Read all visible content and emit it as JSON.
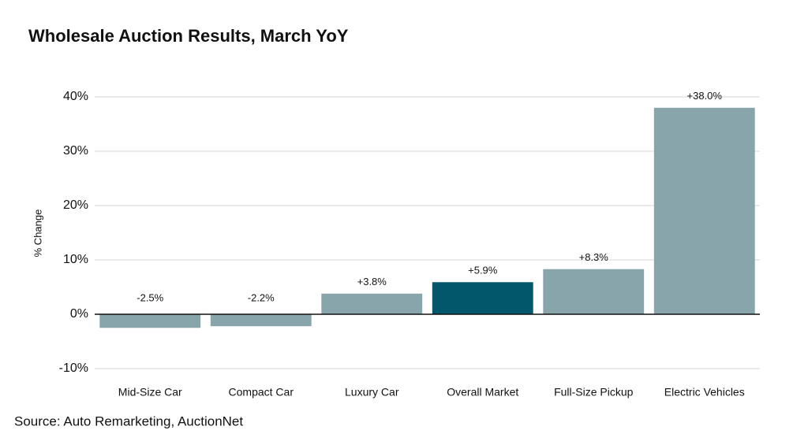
{
  "chart_data": {
    "type": "bar",
    "title": "Wholesale Auction Results, March YoY",
    "ylabel": "% Change",
    "source": "Source: Auto Remarketing, AuctionNet",
    "categories": [
      "Mid-Size Car",
      "Compact Car",
      "Luxury Car",
      "Overall Market",
      "Full-Size Pickup",
      "Electric Vehicles"
    ],
    "values": [
      -2.5,
      -2.2,
      3.8,
      5.9,
      8.3,
      38.0
    ],
    "value_labels": [
      "-2.5%",
      "-2.2%",
      "+3.8%",
      "+5.9%",
      "+8.3%",
      "+38.0%"
    ],
    "colors": [
      "#87a5ab",
      "#87a5ab",
      "#87a5ab",
      "#02576a",
      "#87a5ab",
      "#87a5ab"
    ],
    "ylim": [
      -10,
      40
    ],
    "yticks": [
      {
        "value": -10,
        "label": "-10%"
      },
      {
        "value": 0,
        "label": "0%"
      },
      {
        "value": 10,
        "label": "10%"
      },
      {
        "value": 20,
        "label": "20%"
      },
      {
        "value": 30,
        "label": "30%"
      },
      {
        "value": 40,
        "label": "40%"
      }
    ],
    "grid": true
  }
}
